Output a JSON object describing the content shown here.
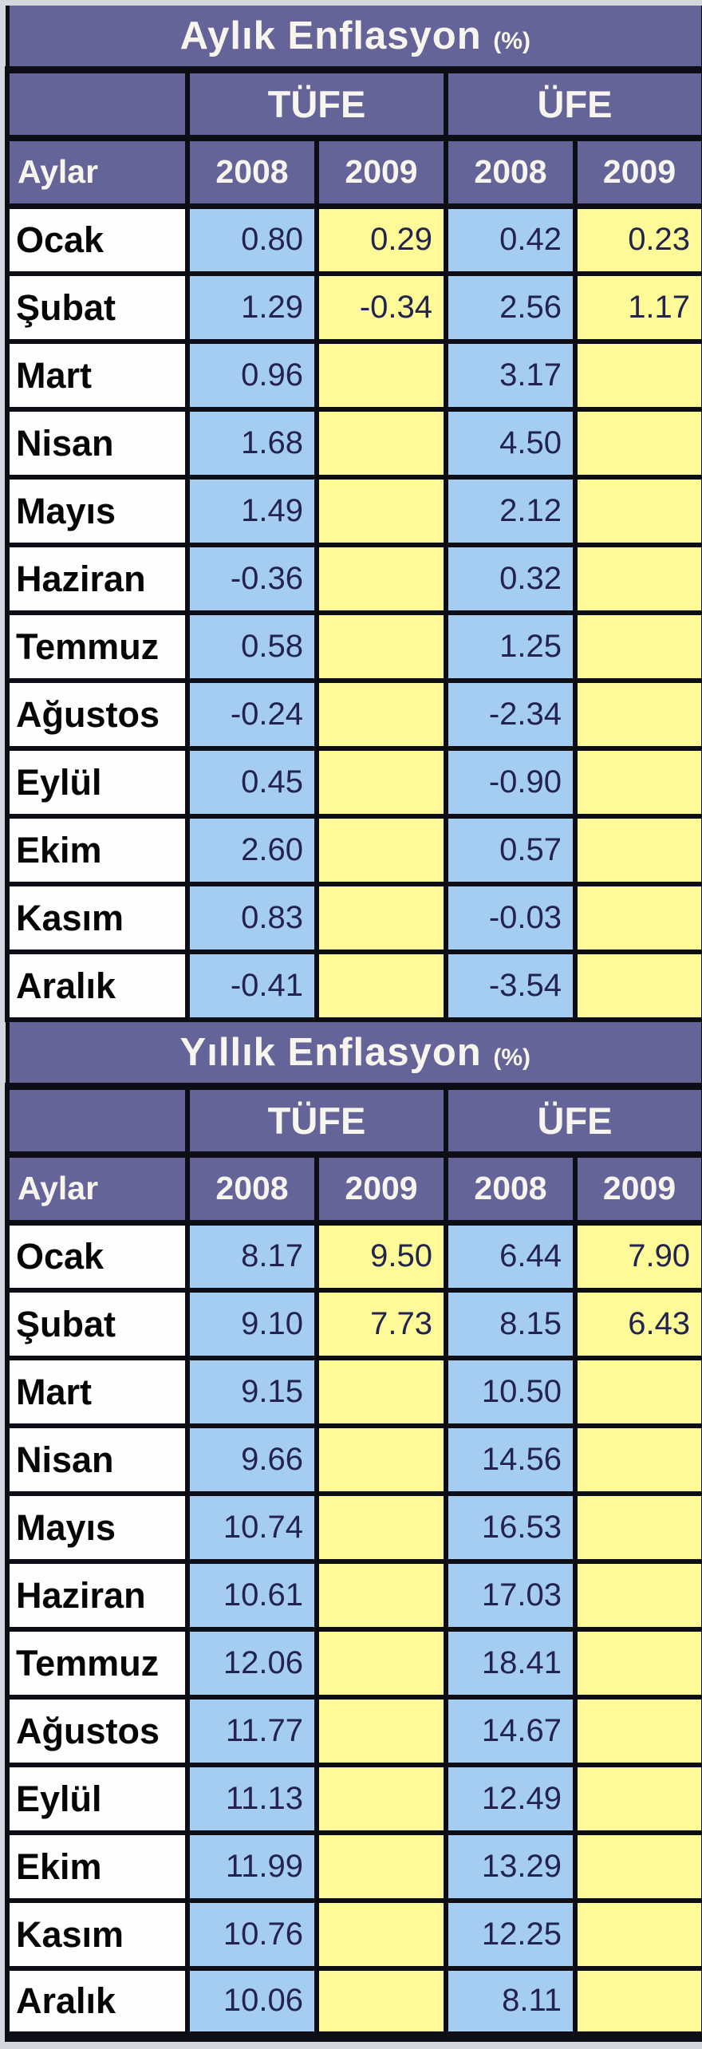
{
  "colors": {
    "page_background": "#d5d7de",
    "header_background": "#646498",
    "header_text": "#f7f5ee",
    "cell_2008_background": "#a5cdf1",
    "cell_2009_background": "#fdfa97",
    "month_cell_background": "#fefefe",
    "month_text": "#060606",
    "value_text": "#232350",
    "grid_border": "#0d0d15"
  },
  "tables": [
    {
      "title": "Aylık Enflasyon",
      "title_suffix": "(%)",
      "group_headers": [
        "TÜFE",
        "ÜFE"
      ],
      "col_header": "Aylar",
      "year_headers": [
        "2008",
        "2009",
        "2008",
        "2009"
      ],
      "rows": [
        {
          "month": "Ocak",
          "values": [
            "0.80",
            "0.29",
            "0.42",
            "0.23"
          ]
        },
        {
          "month": "Şubat",
          "values": [
            "1.29",
            "-0.34",
            "2.56",
            "1.17"
          ]
        },
        {
          "month": "Mart",
          "values": [
            "0.96",
            "",
            "3.17",
            ""
          ]
        },
        {
          "month": "Nisan",
          "values": [
            "1.68",
            "",
            "4.50",
            ""
          ]
        },
        {
          "month": "Mayıs",
          "values": [
            "1.49",
            "",
            "2.12",
            ""
          ]
        },
        {
          "month": "Haziran",
          "values": [
            "-0.36",
            "",
            "0.32",
            ""
          ]
        },
        {
          "month": "Temmuz",
          "values": [
            "0.58",
            "",
            "1.25",
            ""
          ]
        },
        {
          "month": "Ağustos",
          "values": [
            "-0.24",
            "",
            "-2.34",
            ""
          ]
        },
        {
          "month": "Eylül",
          "values": [
            "0.45",
            "",
            "-0.90",
            ""
          ]
        },
        {
          "month": "Ekim",
          "values": [
            "2.60",
            "",
            "0.57",
            ""
          ]
        },
        {
          "month": "Kasım",
          "values": [
            "0.83",
            "",
            "-0.03",
            ""
          ]
        },
        {
          "month": "Aralık",
          "values": [
            "-0.41",
            "",
            "-3.54",
            ""
          ]
        }
      ]
    },
    {
      "title": "Yıllık Enflasyon",
      "title_suffix": "(%)",
      "group_headers": [
        "TÜFE",
        "ÜFE"
      ],
      "col_header": "Aylar",
      "year_headers": [
        "2008",
        "2009",
        "2008",
        "2009"
      ],
      "rows": [
        {
          "month": "Ocak",
          "values": [
            "8.17",
            "9.50",
            "6.44",
            "7.90"
          ]
        },
        {
          "month": "Şubat",
          "values": [
            "9.10",
            "7.73",
            "8.15",
            "6.43"
          ]
        },
        {
          "month": "Mart",
          "values": [
            "9.15",
            "",
            "10.50",
            ""
          ]
        },
        {
          "month": "Nisan",
          "values": [
            "9.66",
            "",
            "14.56",
            ""
          ]
        },
        {
          "month": "Mayıs",
          "values": [
            "10.74",
            "",
            "16.53",
            ""
          ]
        },
        {
          "month": "Haziran",
          "values": [
            "10.61",
            "",
            "17.03",
            ""
          ]
        },
        {
          "month": "Temmuz",
          "values": [
            "12.06",
            "",
            "18.41",
            ""
          ]
        },
        {
          "month": "Ağustos",
          "values": [
            "11.77",
            "",
            "14.67",
            ""
          ]
        },
        {
          "month": "Eylül",
          "values": [
            "11.13",
            "",
            "12.49",
            ""
          ]
        },
        {
          "month": "Ekim",
          "values": [
            "11.99",
            "",
            "13.29",
            ""
          ]
        },
        {
          "month": "Kasım",
          "values": [
            "10.76",
            "",
            "12.25",
            ""
          ]
        },
        {
          "month": "Aralık",
          "values": [
            "10.06",
            "",
            "8.11",
            ""
          ]
        }
      ]
    }
  ],
  "chart_data": [
    {
      "type": "table",
      "title": "Aylık Enflasyon (%)",
      "categories": [
        "Ocak",
        "Şubat",
        "Mart",
        "Nisan",
        "Mayıs",
        "Haziran",
        "Temmuz",
        "Ağustos",
        "Eylül",
        "Ekim",
        "Kasım",
        "Aralık"
      ],
      "series": [
        {
          "name": "TÜFE 2008",
          "values": [
            0.8,
            1.29,
            0.96,
            1.68,
            1.49,
            -0.36,
            0.58,
            -0.24,
            0.45,
            2.6,
            0.83,
            -0.41
          ]
        },
        {
          "name": "TÜFE 2009",
          "values": [
            0.29,
            -0.34,
            null,
            null,
            null,
            null,
            null,
            null,
            null,
            null,
            null,
            null
          ]
        },
        {
          "name": "ÜFE 2008",
          "values": [
            0.42,
            2.56,
            3.17,
            4.5,
            2.12,
            0.32,
            1.25,
            -2.34,
            -0.9,
            0.57,
            -0.03,
            -3.54
          ]
        },
        {
          "name": "ÜFE 2009",
          "values": [
            0.23,
            1.17,
            null,
            null,
            null,
            null,
            null,
            null,
            null,
            null,
            null,
            null
          ]
        }
      ]
    },
    {
      "type": "table",
      "title": "Yıllık Enflasyon (%)",
      "categories": [
        "Ocak",
        "Şubat",
        "Mart",
        "Nisan",
        "Mayıs",
        "Haziran",
        "Temmuz",
        "Ağustos",
        "Eylül",
        "Ekim",
        "Kasım",
        "Aralık"
      ],
      "series": [
        {
          "name": "TÜFE 2008",
          "values": [
            8.17,
            9.1,
            9.15,
            9.66,
            10.74,
            10.61,
            12.06,
            11.77,
            11.13,
            11.99,
            10.76,
            10.06
          ]
        },
        {
          "name": "TÜFE 2009",
          "values": [
            9.5,
            7.73,
            null,
            null,
            null,
            null,
            null,
            null,
            null,
            null,
            null,
            null
          ]
        },
        {
          "name": "ÜFE 2008",
          "values": [
            6.44,
            8.15,
            10.5,
            14.56,
            16.53,
            17.03,
            18.41,
            14.67,
            12.49,
            13.29,
            12.25,
            8.11
          ]
        },
        {
          "name": "ÜFE 2009",
          "values": [
            7.9,
            6.43,
            null,
            null,
            null,
            null,
            null,
            null,
            null,
            null,
            null,
            null
          ]
        }
      ]
    }
  ]
}
